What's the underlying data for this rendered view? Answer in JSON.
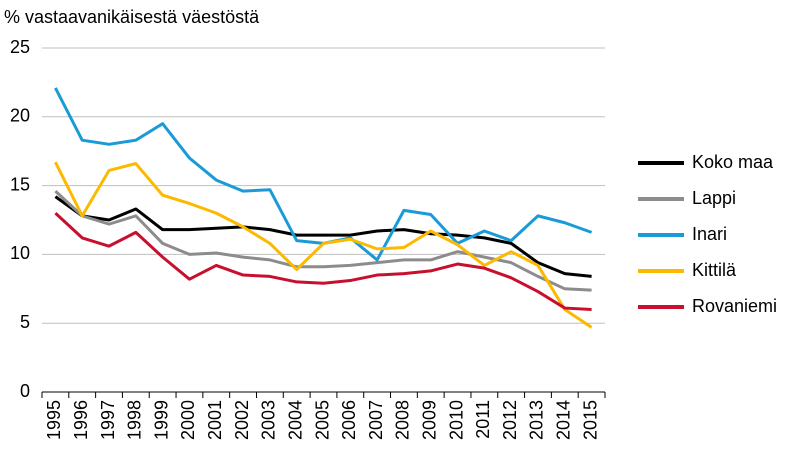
{
  "chart_data": {
    "type": "line",
    "y_label": "% vastaavanikäisestä väestöstä",
    "categories": [
      "1995",
      "1996",
      "1997",
      "1998",
      "1999",
      "2000",
      "2001",
      "2002",
      "2003",
      "2004",
      "2005",
      "2006",
      "2007",
      "2008",
      "2009",
      "2010",
      "2011",
      "2012",
      "2013",
      "2014",
      "2015"
    ],
    "series": [
      {
        "name": "Koko maa",
        "color": "#000000",
        "values": [
          14.2,
          12.8,
          12.5,
          13.3,
          11.8,
          11.8,
          11.9,
          12.0,
          11.8,
          11.4,
          11.4,
          11.4,
          11.7,
          11.8,
          11.5,
          11.4,
          11.2,
          10.8,
          9.4,
          8.6,
          8.4
        ]
      },
      {
        "name": "Lappi",
        "color": "#8c8c8c",
        "values": [
          14.6,
          12.8,
          12.2,
          12.8,
          10.8,
          10.0,
          10.1,
          9.8,
          9.6,
          9.1,
          9.1,
          9.2,
          9.4,
          9.6,
          9.6,
          10.2,
          9.8,
          9.4,
          8.4,
          7.5,
          7.4
        ]
      },
      {
        "name": "Inari",
        "color": "#1a9bd7",
        "values": [
          22.1,
          18.3,
          18.0,
          18.3,
          19.5,
          17.0,
          15.4,
          14.6,
          14.7,
          11.0,
          10.8,
          11.2,
          9.6,
          13.2,
          12.9,
          10.8,
          11.7,
          11.0,
          12.8,
          12.3,
          11.6
        ]
      },
      {
        "name": "Kittilä",
        "color": "#fbb900",
        "values": [
          16.7,
          12.8,
          16.1,
          16.6,
          14.3,
          13.7,
          13.0,
          12.0,
          10.8,
          8.9,
          10.8,
          11.1,
          10.4,
          10.5,
          11.7,
          10.7,
          9.2,
          10.2,
          9.2,
          6.0,
          4.7
        ]
      },
      {
        "name": "Rovaniemi",
        "color": "#c8102e",
        "values": [
          13.0,
          11.2,
          10.6,
          11.6,
          9.8,
          8.2,
          9.2,
          8.5,
          8.4,
          8.0,
          7.9,
          8.1,
          8.5,
          8.6,
          8.8,
          9.3,
          9.0,
          8.3,
          7.3,
          6.1,
          6.0
        ]
      }
    ],
    "ylim": [
      0,
      25
    ],
    "yticks": [
      0,
      5,
      10,
      15,
      20,
      25
    ],
    "grid": true,
    "legend": "right"
  }
}
